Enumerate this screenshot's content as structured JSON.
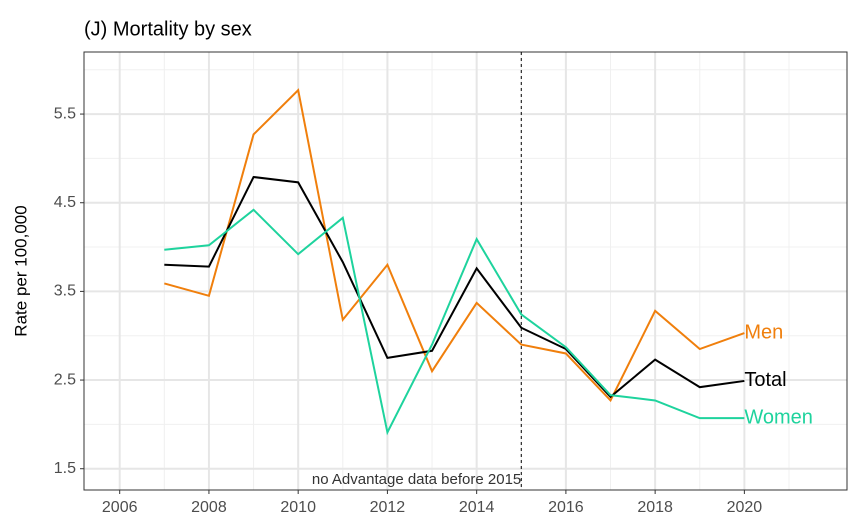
{
  "chart_data": {
    "type": "line",
    "title": "(J) Mortality by sex",
    "y_label": "Rate per 100,000",
    "x": [
      2007,
      2008,
      2009,
      2010,
      2011,
      2012,
      2013,
      2014,
      2015,
      2016,
      2017,
      2018,
      2019,
      2020
    ],
    "series": [
      {
        "name": "Men",
        "color": "#f07f0c",
        "values": [
          3.59,
          3.45,
          5.27,
          5.77,
          3.18,
          3.8,
          2.6,
          3.37,
          2.9,
          2.8,
          2.27,
          3.28,
          2.85,
          3.03
        ]
      },
      {
        "name": "Total",
        "color": "#000000",
        "values": [
          3.8,
          3.78,
          4.79,
          4.73,
          3.83,
          2.75,
          2.83,
          3.76,
          3.09,
          2.85,
          2.31,
          2.73,
          2.42,
          2.49
        ]
      },
      {
        "name": "Women",
        "color": "#1ed39d",
        "values": [
          3.97,
          4.02,
          4.42,
          3.92,
          4.33,
          1.91,
          2.9,
          4.09,
          3.24,
          2.87,
          2.33,
          2.27,
          2.07,
          2.07
        ]
      }
    ],
    "xlim": [
      2005.2,
      2022.3
    ],
    "ylim": [
      1.26,
      6.2
    ],
    "xticks": [
      2006,
      2008,
      2010,
      2012,
      2014,
      2016,
      2018,
      2020
    ],
    "yticks": [
      1.5,
      2.5,
      3.5,
      4.5,
      5.5
    ],
    "x_minor_ticks": [
      2007,
      2009,
      2011,
      2013,
      2015,
      2017,
      2019,
      2021
    ],
    "y_minor_ticks": [
      2,
      3,
      4,
      5,
      6
    ],
    "grid": true,
    "vline": 2015,
    "annotation": "no Advantage data before 2015"
  }
}
